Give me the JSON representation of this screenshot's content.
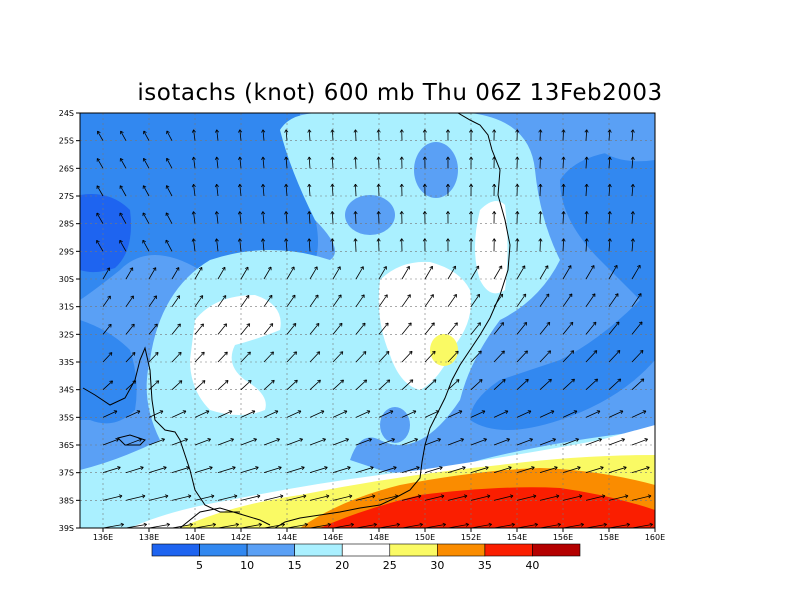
{
  "title": "isotachs (knot) 600 mb Thu 06Z 13Feb2003",
  "variable": "isotachs",
  "units": "knot",
  "level": "600 mb",
  "valid_time": "Thu 06Z 13Feb2003",
  "lat_labels": [
    "24S",
    "25S",
    "26S",
    "27S",
    "28S",
    "29S",
    "30S",
    "31S",
    "32S",
    "33S",
    "34S",
    "35S",
    "36S",
    "37S",
    "38S",
    "39S"
  ],
  "lon_labels": [
    "136E",
    "138E",
    "140E",
    "142E",
    "144E",
    "146E",
    "148E",
    "150E",
    "152E",
    "154E",
    "156E",
    "158E",
    "160E"
  ],
  "lat_range": [
    -39,
    -24
  ],
  "lon_range": [
    135,
    160
  ],
  "colorbar": {
    "labels": [
      "5",
      "10",
      "15",
      "20",
      "25",
      "30",
      "35",
      "40"
    ],
    "colors": [
      "#1e64f0",
      "#3288f0",
      "#5aa0f5",
      "#aaf0ff",
      "#ffffff",
      "#fafa64",
      "#fa8c00",
      "#fa1e00",
      "#b40000"
    ]
  },
  "shading_colors": {
    "deep_blue": "#1e64f0",
    "blue": "#3288f0",
    "light_blue": "#5aa0f5",
    "cyan": "#aaf0ff",
    "white": "#ffffff",
    "yellow": "#fafa64",
    "orange": "#fa8c00",
    "red": "#fa1e00",
    "dark_red": "#b40000"
  }
}
